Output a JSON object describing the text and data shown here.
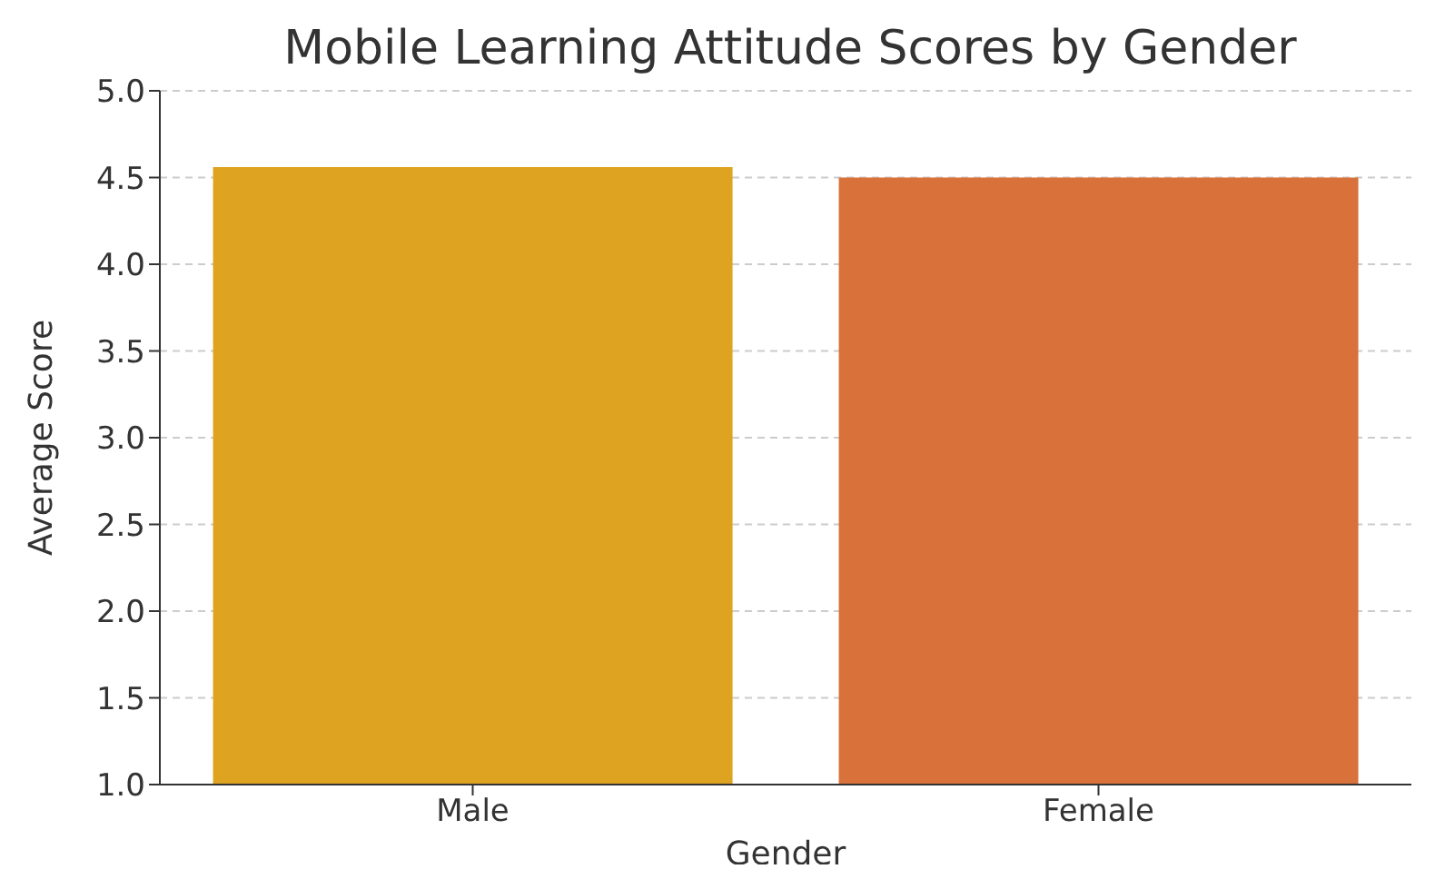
{
  "chart_data": {
    "type": "bar",
    "title": "Mobile Learning Attitude Scores by Gender",
    "xlabel": "Gender",
    "ylabel": "Average Score",
    "categories": [
      "Male",
      "Female"
    ],
    "values": [
      4.56,
      4.5
    ],
    "colors": [
      "#dea321",
      "#d9713a"
    ],
    "ylim": [
      1.0,
      5.0
    ],
    "yticks": [
      {
        "value": 1,
        "label": "1.0"
      },
      {
        "value": 1.5,
        "label": "1.5"
      },
      {
        "value": 2,
        "label": "2.0"
      },
      {
        "value": 2.5,
        "label": "2.5"
      },
      {
        "value": 3,
        "label": "3.0"
      },
      {
        "value": 3.5,
        "label": "3.5"
      },
      {
        "value": 4,
        "label": "4.0"
      },
      {
        "value": 4.5,
        "label": "4.5"
      },
      {
        "value": 5,
        "label": "5.0"
      }
    ],
    "grid": "y"
  }
}
